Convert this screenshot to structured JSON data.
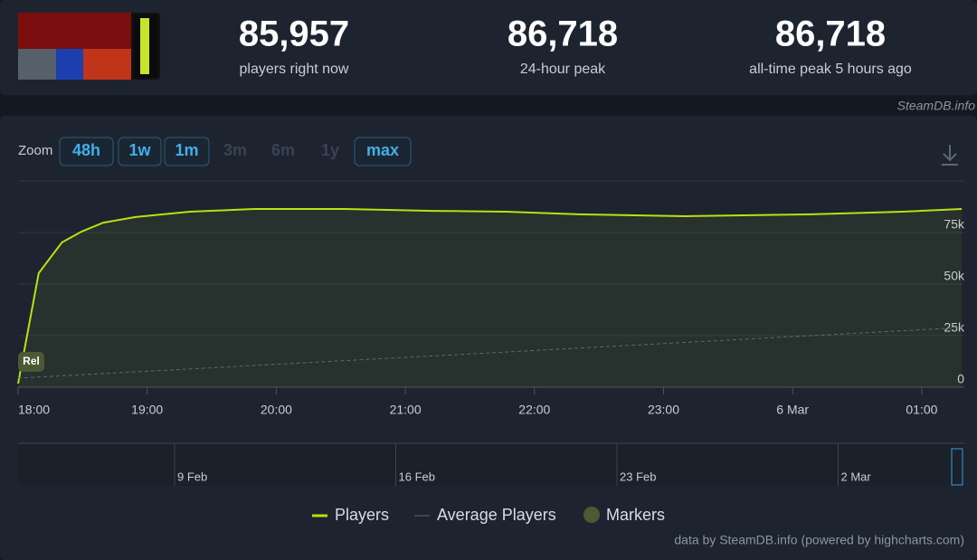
{
  "stats": [
    {
      "value": "85,957",
      "label": "players right now"
    },
    {
      "value": "86,718",
      "label": "24-hour peak"
    },
    {
      "value": "86,718",
      "label": "all-time peak 5 hours ago"
    }
  ],
  "watermark": "SteamDB.info",
  "zoom": {
    "label": "Zoom",
    "buttons": [
      {
        "text": "48h",
        "enabled": true
      },
      {
        "text": "1w",
        "enabled": true
      },
      {
        "text": "1m",
        "enabled": true
      },
      {
        "text": "3m",
        "enabled": false
      },
      {
        "text": "6m",
        "enabled": false
      },
      {
        "text": "1y",
        "enabled": false
      },
      {
        "text": "max",
        "enabled": true
      }
    ]
  },
  "chart_data": {
    "type": "line",
    "xlim": [
      18,
      25.33
    ],
    "xticks": [
      {
        "value": 18,
        "label": "18:00"
      },
      {
        "value": 19,
        "label": "19:00"
      },
      {
        "value": 20,
        "label": "20:00"
      },
      {
        "value": 21,
        "label": "21:00"
      },
      {
        "value": 22,
        "label": "22:00"
      },
      {
        "value": 23,
        "label": "23:00"
      },
      {
        "value": 24,
        "label": "6 Mar"
      },
      {
        "value": 25,
        "label": "01:00"
      }
    ],
    "ylim": [
      0,
      100000
    ],
    "yticks": [
      {
        "value": 0,
        "label": "0"
      },
      {
        "value": 25000,
        "label": "25k"
      },
      {
        "value": 50000,
        "label": "50k"
      },
      {
        "value": 75000,
        "label": "75k"
      }
    ],
    "grid": true,
    "series": [
      {
        "name": "Players",
        "color": "#b9e10f",
        "x": [
          18,
          18.16,
          18.34,
          18.49,
          18.66,
          18.91,
          19.33,
          19.83,
          20.52,
          21.22,
          21.78,
          22.34,
          23.17,
          24.15,
          24.85,
          25.31
        ],
        "values": [
          1750,
          55300,
          70200,
          75400,
          79800,
          82500,
          85100,
          86400,
          86400,
          85500,
          85100,
          83800,
          82900,
          83800,
          85100,
          86400
        ]
      },
      {
        "name": "Average Players",
        "color": "#5d6776",
        "x": [
          18,
          25.31
        ],
        "values": [
          4400,
          28900
        ]
      }
    ],
    "markers": {
      "name": "Markers",
      "color": "#4b5934",
      "items": [
        {
          "x": 18,
          "label": "Rel"
        }
      ]
    },
    "navigator": {
      "xticks": [
        "9 Feb",
        "16 Feb",
        "23 Feb",
        "2 Mar"
      ]
    }
  },
  "credits": "data by SteamDB.info (powered by highcharts.com)"
}
